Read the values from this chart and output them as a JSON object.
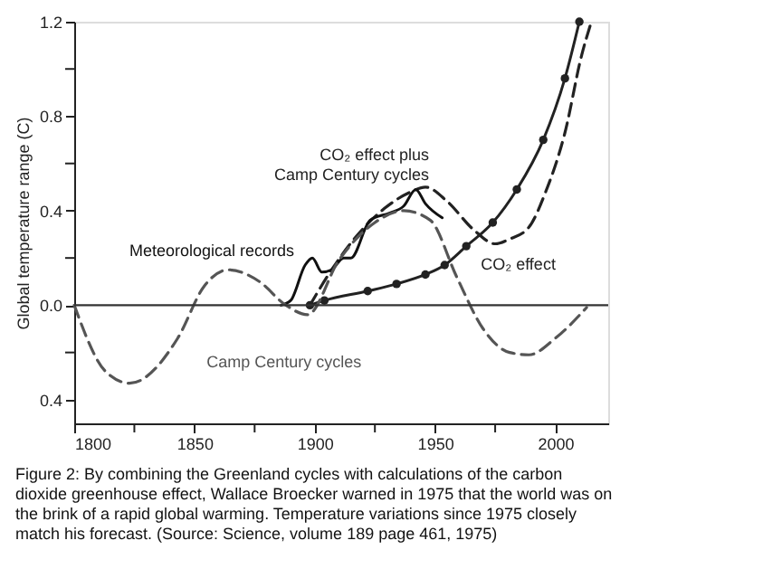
{
  "chart_data": {
    "type": "line",
    "xlabel": null,
    "ylabel": "Global temperature range (C)",
    "xlim": [
      1800,
      2022
    ],
    "xticks": [
      1800,
      {
        "value": 1825,
        "label": null
      },
      1850,
      {
        "value": 1875,
        "label": null
      },
      1900,
      {
        "value": 1925,
        "label": null
      },
      1950,
      {
        "value": 1975,
        "label": null
      },
      2000
    ],
    "ylim": [
      -0.5,
      1.2
    ],
    "yticks": [
      {
        "value": -0.4,
        "label": "0.4"
      },
      {
        "value": -0.2,
        "label": null
      },
      {
        "value": 0,
        "label": "0.0"
      },
      {
        "value": 0.2,
        "label": null
      },
      0.4,
      {
        "value": 0.6,
        "label": null
      },
      0.8,
      {
        "value": 1.0,
        "label": null
      },
      1.2
    ],
    "grid": false,
    "ref_lines": [
      {
        "axis": "y",
        "value": 0,
        "color": "#333333",
        "line_style": "solid"
      }
    ],
    "series": [
      {
        "name": "CO₂ effect plus Camp Century cycles",
        "color": "#222222",
        "line_style": "dashed",
        "marker": "none",
        "x": [
          1898,
          1907,
          1918,
          1929,
          1940,
          1946,
          1955,
          1966,
          1975,
          1981,
          1989,
          1996,
          2004,
          2011,
          2015
        ],
        "values": [
          0.0,
          0.15,
          0.3,
          0.41,
          0.48,
          0.5,
          0.44,
          0.32,
          0.26,
          0.28,
          0.33,
          0.48,
          0.73,
          1.06,
          1.2
        ]
      },
      {
        "name": "Meteorological records",
        "color": "#111111",
        "line_style": "solid",
        "marker": "none",
        "x": [
          1886,
          1890,
          1896,
          1899,
          1903,
          1907,
          1912,
          1915,
          1923,
          1931,
          1937,
          1942,
          1946,
          1953
        ],
        "values": [
          0.0,
          0.02,
          0.17,
          0.2,
          0.14,
          0.15,
          0.2,
          0.2,
          0.36,
          0.39,
          0.42,
          0.49,
          0.43,
          0.37
        ]
      },
      {
        "name": "CO₂ effect",
        "color": "#222222",
        "line_style": "solid",
        "marker": "circle",
        "x": [
          1898,
          1904,
          1922,
          1934,
          1946,
          1954,
          1963,
          1974,
          1984,
          1995,
          2004,
          2010
        ],
        "values": [
          0.0,
          0.02,
          0.06,
          0.09,
          0.13,
          0.17,
          0.25,
          0.35,
          0.49,
          0.7,
          0.96,
          1.2
        ]
      },
      {
        "name": "Camp Century cycles",
        "color": "#555555",
        "line_style": "dashed",
        "marker": "none",
        "x": [
          1800,
          1813,
          1823,
          1843,
          1854,
          1864,
          1877,
          1888,
          1897,
          1910,
          1925,
          1937,
          1948,
          1959,
          1970,
          1981,
          1989,
          2000,
          2013
        ],
        "values": [
          0.0,
          -0.28,
          -0.33,
          -0.14,
          0.08,
          0.15,
          0.1,
          0.0,
          -0.04,
          0.19,
          0.35,
          0.4,
          0.36,
          0.12,
          -0.1,
          -0.2,
          -0.21,
          -0.14,
          -0.01
        ]
      }
    ],
    "annotations": [
      "Figure 2: By combining the Greenland cycles with calculations of the carbon dioxide greenhouse effect, Wallace Broecker warned in 1975 that the world was on the brink of a rapid global warming. Temperature variations since 1975 closely match his forecast. (Source: Science, volume 189 page 461, 1975)"
    ]
  }
}
